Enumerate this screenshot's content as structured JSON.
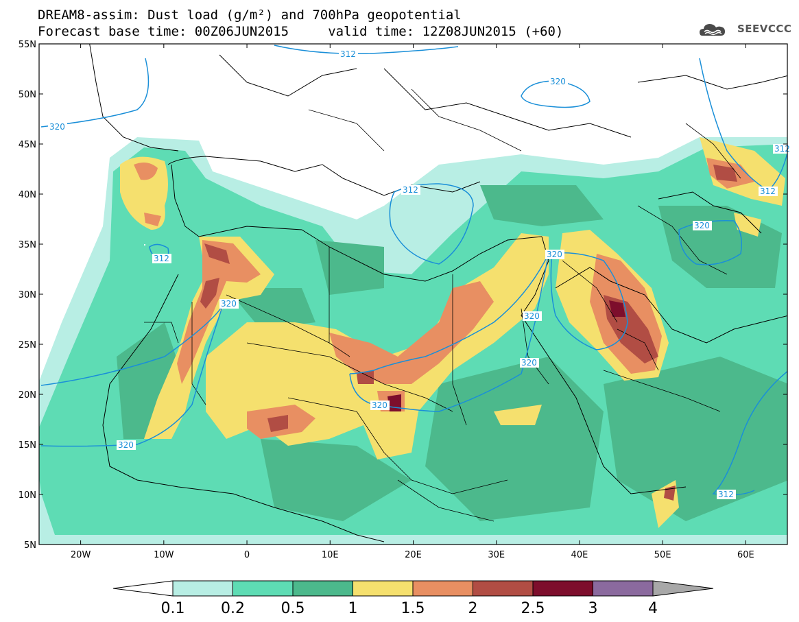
{
  "title": {
    "line1": "DREAM8-assim: Dust load (g/m²) and 700hPa geopotential",
    "line2": "Forecast base time: 00Z06JUN2015     valid time: 12Z08JUN2015 (+60)"
  },
  "logo": {
    "text": "SEEVCCC",
    "icon": "cloud-icon"
  },
  "map": {
    "lon_range": [
      -25,
      65
    ],
    "lat_range": [
      5,
      55
    ],
    "lat_labels": [
      "55N",
      "50N",
      "45N",
      "40N",
      "35N",
      "30N",
      "25N",
      "20N",
      "15N",
      "10N",
      "5N"
    ],
    "lon_labels": [
      "20W",
      "10W",
      "0",
      "10E",
      "20E",
      "30E",
      "40E",
      "50E",
      "60E"
    ],
    "contour_labels": [
      "320",
      "312",
      "312",
      "320",
      "312",
      "320",
      "320",
      "320",
      "320",
      "320",
      "312",
      "320",
      "312",
      "320",
      "312",
      "320"
    ]
  },
  "colorbar": {
    "levels": [
      "0.1",
      "0.2",
      "0.5",
      "1",
      "1.5",
      "2",
      "2.5",
      "3",
      "4"
    ],
    "colors": [
      "#ffffff",
      "#b8eee4",
      "#5edcb4",
      "#4cb98c",
      "#f5e06e",
      "#e88f62",
      "#b14d44",
      "#7d0e2c",
      "#8b6a9e",
      "#a8a8a8"
    ]
  }
}
